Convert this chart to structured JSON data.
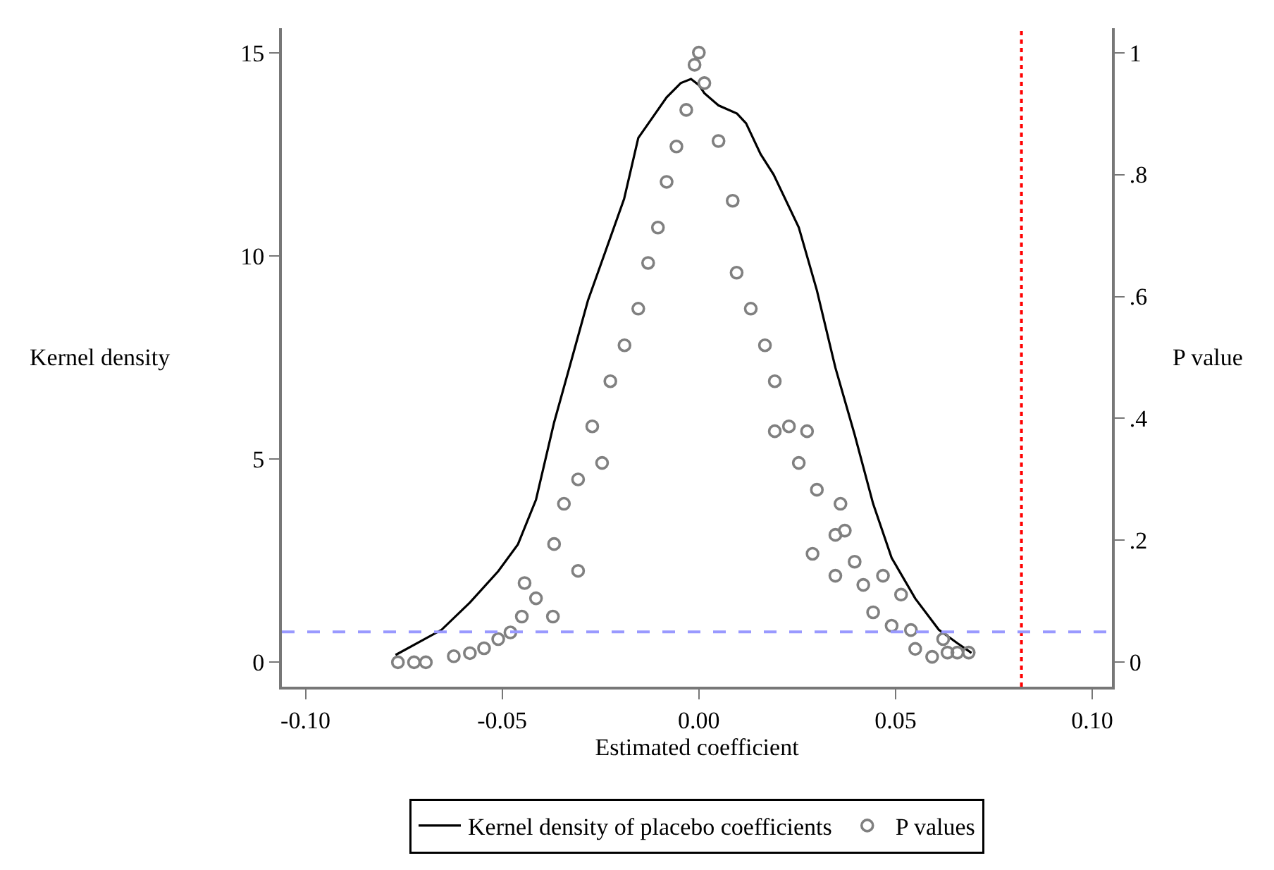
{
  "chart_data": {
    "type": "line",
    "xlabel": "Estimated coefficient",
    "ylabel": "Kernel density",
    "y2label": "P value",
    "xlim": [
      -0.106,
      0.105
    ],
    "xticks": [
      {
        "value": -0.1,
        "label": "-0.10"
      },
      {
        "value": -0.05,
        "label": "-0.05"
      },
      {
        "value": 0,
        "label": "0.00"
      },
      {
        "value": 0.05,
        "label": "0.05"
      },
      {
        "value": 0.1,
        "label": "0.10"
      }
    ],
    "ylim": [
      -0.6,
      15.6
    ],
    "yticks": [
      0,
      5,
      10,
      15
    ],
    "y2lim": [
      -0.04,
      1.04
    ],
    "y2ticks": [
      0,
      {
        "value": 0.2,
        "label": ".2"
      },
      {
        "value": 0.4,
        "label": ".4"
      },
      {
        "value": 0.6,
        "label": ".6"
      },
      {
        "value": 0.8,
        "label": ".8"
      },
      1
    ],
    "grid": false,
    "legend": "bottom",
    "series": [
      {
        "name": "Kernel density of placebo coefficients",
        "type": "line",
        "color": "#000000",
        "line_style": "solid",
        "marker": "none",
        "x": [
          -0.0771,
          -0.0654,
          -0.0582,
          -0.051,
          -0.046,
          -0.0414,
          -0.0368,
          -0.0332,
          -0.0282,
          -0.0236,
          -0.019,
          -0.0154,
          -0.0118,
          -0.0082,
          -0.0046,
          -0.002,
          0.0,
          0.0014,
          0.005,
          0.0097,
          0.012,
          0.0157,
          0.019,
          0.0254,
          0.03,
          0.0347,
          0.0396,
          0.0443,
          0.049,
          0.055,
          0.061,
          0.0657,
          0.0693
        ],
        "values": [
          0.18,
          0.8,
          1.47,
          2.24,
          2.9,
          4.0,
          5.9,
          7.15,
          8.9,
          10.15,
          11.4,
          12.9,
          13.4,
          13.9,
          14.25,
          14.35,
          14.2,
          14.0,
          13.7,
          13.5,
          13.26,
          12.5,
          12.0,
          10.7,
          9.15,
          7.25,
          5.6,
          3.9,
          2.57,
          1.57,
          0.8,
          0.47,
          0.23
        ]
      },
      {
        "name": "P values",
        "type": "scatter",
        "axis": "y2",
        "color": "#808080",
        "marker": "circle",
        "x": [
          -0.0765,
          -0.0724,
          -0.0694,
          -0.0623,
          -0.0582,
          -0.0546,
          -0.051,
          -0.0479,
          -0.045,
          -0.0443,
          -0.0414,
          -0.0371,
          -0.0368,
          -0.0343,
          -0.0307,
          -0.0307,
          -0.0271,
          -0.0246,
          -0.0225,
          -0.0189,
          -0.0154,
          -0.0129,
          -0.0104,
          -0.0082,
          -0.0057,
          -0.0032,
          -0.0011,
          0.0,
          0.0014,
          0.005,
          0.0086,
          0.0096,
          0.0132,
          0.0168,
          0.0193,
          0.0229,
          0.0193,
          0.0275,
          0.0254,
          0.03,
          0.036,
          0.0289,
          0.0347,
          0.0371,
          0.0347,
          0.0396,
          0.0418,
          0.0468,
          0.0443,
          0.0514,
          0.049,
          0.0539,
          0.055,
          0.0593,
          0.0621,
          0.0632,
          0.0657,
          0.0686
        ],
        "values": [
          0.0,
          0.0,
          0.0,
          0.01,
          0.015,
          0.023,
          0.038,
          0.049,
          0.075,
          0.13,
          0.105,
          0.075,
          0.194,
          0.26,
          0.15,
          0.3,
          0.387,
          0.327,
          0.461,
          0.52,
          0.58,
          0.655,
          0.713,
          0.788,
          0.846,
          0.906,
          0.98,
          1.0,
          0.95,
          0.855,
          0.757,
          0.639,
          0.58,
          0.52,
          0.461,
          0.387,
          0.379,
          0.379,
          0.327,
          0.283,
          0.26,
          0.178,
          0.209,
          0.216,
          0.142,
          0.165,
          0.127,
          0.142,
          0.082,
          0.111,
          0.06,
          0.053,
          0.022,
          0.009,
          0.038,
          0.016,
          0.016,
          0.016
        ]
      }
    ],
    "ref_lines": [
      {
        "axis": "x",
        "value": 0.082,
        "color": "#ff0000",
        "line_style": "dotted"
      },
      {
        "axis": "y2",
        "value": 0.05,
        "color": "#9999ff",
        "line_style": "dashed"
      }
    ]
  }
}
